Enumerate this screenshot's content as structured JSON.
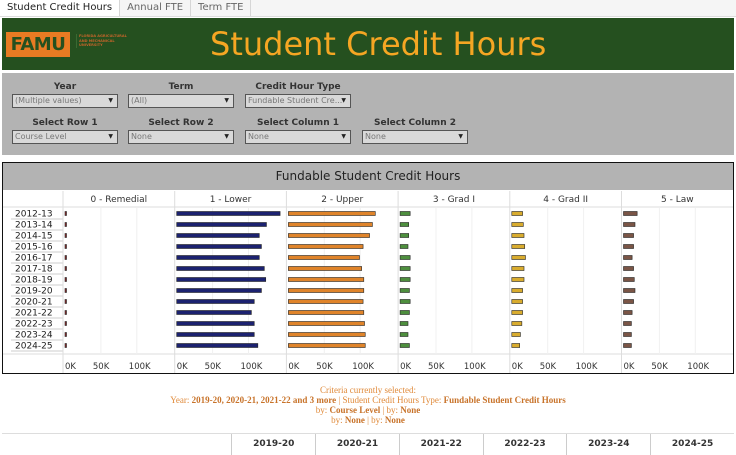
{
  "tabs": [
    {
      "label": "Student Credit Hours",
      "active": true
    },
    {
      "label": "Annual FTE"
    },
    {
      "label": "Term FTE"
    }
  ],
  "banner": {
    "logo": "FAMU",
    "logo_sub": "FLORIDA AGRICULTURAL AND MECHANICAL UNIVERSITY",
    "title": "Student Credit Hours",
    "bg_color": "#25501f",
    "title_color": "#f5a623"
  },
  "filters": [
    {
      "label": "Year",
      "value": "(Multiple values)"
    },
    {
      "label": "Term",
      "value": "(All)"
    },
    {
      "label": "Credit Hour Type",
      "value": "Fundable Student Cre..."
    },
    {
      "label": "Select Row 1",
      "value": "Course Level"
    },
    {
      "label": "Select Row 2",
      "value": "None"
    },
    {
      "label": "Select Column 1",
      "value": "None"
    },
    {
      "label": "Select Column 2",
      "value": "None"
    }
  ],
  "chart_data": {
    "type": "bar",
    "orientation": "horizontal",
    "title": "Fundable Student Credit Hours",
    "categories": [
      "2012-13",
      "2013-14",
      "2014-15",
      "2015-16",
      "2016-17",
      "2017-18",
      "2018-19",
      "2019-20",
      "2020-21",
      "2021-22",
      "2022-23",
      "2023-24",
      "2024-25"
    ],
    "xlim": [
      0,
      150000
    ],
    "x_ticks": [
      "0K",
      "50K",
      "100K"
    ],
    "grid": true,
    "panels": [
      {
        "name": "0 - Remedial",
        "color": "#8b2a2a",
        "values": [
          2000,
          2000,
          2000,
          2000,
          1500,
          1500,
          500,
          500,
          500,
          500,
          500,
          500,
          500
        ]
      },
      {
        "name": "1 - Lower",
        "color": "#1c2270",
        "values": [
          144000,
          125000,
          115000,
          118000,
          115000,
          122000,
          124000,
          118000,
          108000,
          104000,
          108000,
          108000,
          113000
        ]
      },
      {
        "name": "2 - Upper",
        "color": "#e0842a",
        "values": [
          121000,
          117000,
          113000,
          104000,
          99000,
          102000,
          105000,
          105000,
          104000,
          105000,
          106000,
          107000,
          107000
        ]
      },
      {
        "name": "3 - Grad I",
        "color": "#4e8f3e",
        "values": [
          14000,
          12000,
          12000,
          11000,
          14000,
          14000,
          14000,
          13000,
          14000,
          13000,
          11000,
          11000,
          13000
        ]
      },
      {
        "name": "4 - Grad II",
        "color": "#d9ac2e",
        "values": [
          15000,
          16000,
          17000,
          18000,
          19000,
          17000,
          17000,
          15000,
          15000,
          15000,
          14000,
          12000,
          11000
        ]
      },
      {
        "name": "5 - Law",
        "color": "#7a5546",
        "values": [
          19000,
          16000,
          14000,
          14000,
          12000,
          14000,
          15000,
          16000,
          14000,
          12000,
          11000,
          11000,
          11000
        ]
      }
    ]
  },
  "criteria": {
    "heading": "Criteria currently selected:",
    "year_label": "Year:",
    "year_value": "2019-20, 2020-21, 2021-22 and 3 more",
    "type_label": "| Student Credit Hours Type:",
    "type_value": "Fundable Student Credit Hours",
    "by1": "by:",
    "by1_value": "Course Level",
    "by2": "| by:",
    "by2_value": "None",
    "by3": "by:",
    "by3_value": "None",
    "by4": "| by:",
    "by4_value": "None"
  },
  "bottom_table": {
    "columns": [
      "2019-20",
      "2020-21",
      "2021-22",
      "2022-23",
      "2023-24",
      "2024-25"
    ]
  }
}
